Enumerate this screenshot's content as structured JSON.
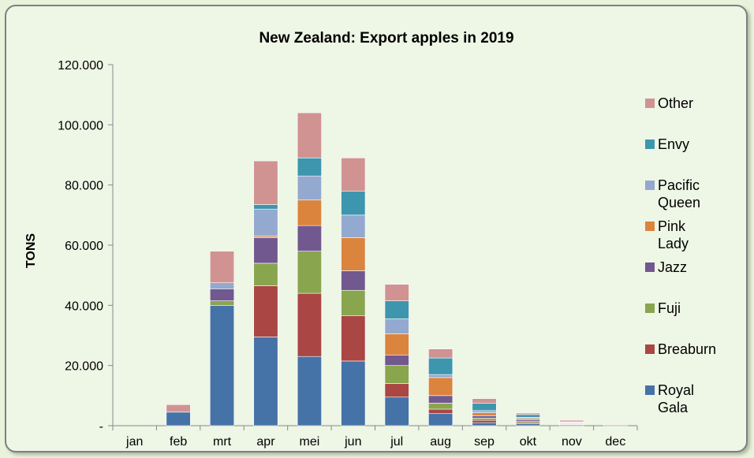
{
  "chart_data": {
    "type": "bar",
    "stacked": true,
    "title": "New Zealand: Export apples in 2019",
    "xlabel": "",
    "ylabel": "TONS",
    "ylim": [
      0,
      120000
    ],
    "yticks": [
      0,
      20000,
      40000,
      60000,
      80000,
      100000,
      120000
    ],
    "ytick_labels": [
      "-",
      "20.000",
      "40.000",
      "60.000",
      "80.000",
      "100.000",
      "120.000"
    ],
    "grid": false,
    "legend_position": "right",
    "categories": [
      "jan",
      "feb",
      "mrt",
      "apr",
      "mei",
      "jun",
      "jul",
      "aug",
      "sep",
      "okt",
      "nov",
      "dec"
    ],
    "series": [
      {
        "name": "Royal Gala",
        "color": "#4572a7",
        "values": [
          0,
          4500,
          40000,
          29500,
          23000,
          21500,
          9500,
          4000,
          1000,
          600,
          300,
          0
        ]
      },
      {
        "name": "Breaburn",
        "color": "#aa4643",
        "values": [
          0,
          0,
          0,
          17000,
          21000,
          15000,
          4500,
          1500,
          800,
          400,
          200,
          0
        ]
      },
      {
        "name": "Fuji",
        "color": "#89a54e",
        "values": [
          0,
          0,
          1500,
          7500,
          14000,
          8500,
          6000,
          2000,
          700,
          400,
          200,
          0
        ]
      },
      {
        "name": "Jazz",
        "color": "#71588f",
        "values": [
          0,
          0,
          4000,
          8500,
          8500,
          6500,
          3500,
          2500,
          800,
          500,
          200,
          0
        ]
      },
      {
        "name": "Pink Lady",
        "color": "#db843d",
        "values": [
          0,
          0,
          0,
          500,
          8500,
          11000,
          7000,
          6000,
          1000,
          500,
          200,
          0
        ]
      },
      {
        "name": "Pacific Queen",
        "color": "#93a9cf",
        "values": [
          0,
          0,
          2000,
          9000,
          8000,
          7500,
          5000,
          1000,
          700,
          400,
          0,
          0
        ]
      },
      {
        "name": "Envy",
        "color": "#3d96ae",
        "values": [
          0,
          0,
          0,
          1500,
          6000,
          8000,
          6000,
          5500,
          2500,
          900,
          200,
          0
        ]
      },
      {
        "name": "Other",
        "color": "#d09392",
        "values": [
          0,
          2500,
          10500,
          14500,
          15000,
          11000,
          5500,
          3000,
          1500,
          500,
          500,
          300
        ]
      }
    ]
  }
}
